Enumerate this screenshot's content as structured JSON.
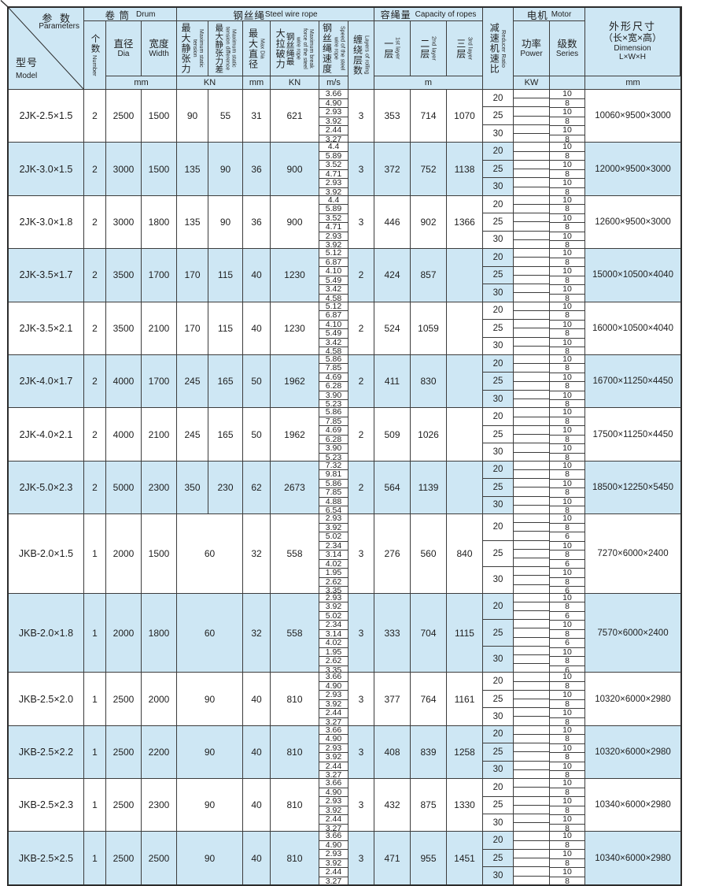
{
  "header": {
    "corner": {
      "params_zh": "参 数",
      "params_en": "Parameters",
      "model_zh": "型号",
      "model_en": "Model"
    },
    "groups": {
      "drum_zh": "卷 筒",
      "drum_en": "Drum",
      "rope_zh": "钢丝绳",
      "rope_en": "Steel wire rope",
      "capacity_zh": "容绳量",
      "capacity_en": "Capacity of ropes",
      "motor_zh": "电机",
      "motor_en": "Motor"
    },
    "cols": {
      "number_zh": "个数",
      "number_en": "Number",
      "dia_zh": "直径",
      "dia_en": "Dia",
      "width_zh": "宽度",
      "width_en": "Width",
      "tension_zh": "最大静张力",
      "tension_en": "Maximum static tension",
      "tension_diff_zh": "最大静张力差",
      "tension_diff_en": "Maximum static tension difference",
      "max_dia_zh": "最大直径",
      "max_dia_en": "Max Dia",
      "break_zh_a": "大拉破力",
      "break_zh_b": "钢丝绳最",
      "break_en": "Maximum break force of the steel wire rope",
      "speed_zh": "钢丝绳速度",
      "speed_en": "Speed of the steel wire rope",
      "layers_zh": "缠绕层数",
      "layers_en": "Layers of rolling",
      "layer1_zh": "一层",
      "layer1_en": "1st layer",
      "layer2_zh": "二层",
      "layer2_en": "2nd layer",
      "layer3_zh": "三层",
      "layer3_en": "3rd layer",
      "ratio_zh": "减速机速比",
      "ratio_en": "Reducer Ratio",
      "power_zh": "功率",
      "power_en": "Power",
      "series_zh": "级数",
      "series_en": "Series",
      "dim_zh": "外形尺寸",
      "dim_zh2": "（长×宽×高）",
      "dim_en": "Dimension",
      "dim_en2": "L×W×H"
    },
    "units": {
      "drum": "mm",
      "tension": "KN",
      "max_dia": "mm",
      "break": "KN",
      "speed": "m/s",
      "capacity": "m",
      "power": "KW",
      "dim": "mm"
    }
  },
  "rows": [
    {
      "model": "2JK-2.5×1.5",
      "number": "2",
      "dia": "2500",
      "width": "1500",
      "tension": "90",
      "tension_diff": "55",
      "max_dia": "31",
      "break_force": "621",
      "speeds": [
        "3.66",
        "4.90",
        "2.93",
        "3.92",
        "2.44",
        "3.27"
      ],
      "layers": "3",
      "cap1": "353",
      "cap2": "714",
      "cap3": "1070",
      "ratios": [
        "20",
        "25",
        "30"
      ],
      "series_pattern": [
        "10",
        "8"
      ],
      "dimension": "10060×9500×3000",
      "shaded": false
    },
    {
      "model": "2JK-3.0×1.5",
      "number": "2",
      "dia": "3000",
      "width": "1500",
      "tension": "135",
      "tension_diff": "90",
      "max_dia": "36",
      "break_force": "900",
      "speeds": [
        "4.4",
        "5.89",
        "3.52",
        "4.71",
        "2.93",
        "3.92"
      ],
      "layers": "3",
      "cap1": "372",
      "cap2": "752",
      "cap3": "1138",
      "ratios": [
        "20",
        "25",
        "30"
      ],
      "series_pattern": [
        "10",
        "8"
      ],
      "dimension": "12000×9500×3000",
      "shaded": true
    },
    {
      "model": "2JK-3.0×1.8",
      "number": "2",
      "dia": "3000",
      "width": "1800",
      "tension": "135",
      "tension_diff": "90",
      "max_dia": "36",
      "break_force": "900",
      "speeds": [
        "4.4",
        "5.89",
        "3.52",
        "4.71",
        "2.93",
        "3.92"
      ],
      "layers": "3",
      "cap1": "446",
      "cap2": "902",
      "cap3": "1366",
      "ratios": [
        "20",
        "25",
        "30"
      ],
      "series_pattern": [
        "10",
        "8"
      ],
      "dimension": "12600×9500×3000",
      "shaded": false
    },
    {
      "model": "2JK-3.5×1.7",
      "number": "2",
      "dia": "3500",
      "width": "1700",
      "tension": "170",
      "tension_diff": "115",
      "max_dia": "40",
      "break_force": "1230",
      "speeds": [
        "5.12",
        "6.87",
        "4.10",
        "5.49",
        "3.42",
        "4.58"
      ],
      "layers": "2",
      "cap1": "424",
      "cap2": "857",
      "cap3": "",
      "ratios": [
        "20",
        "25",
        "30"
      ],
      "series_pattern": [
        "10",
        "8"
      ],
      "dimension": "15000×10500×4040",
      "shaded": true
    },
    {
      "model": "2JK-3.5×2.1",
      "number": "2",
      "dia": "3500",
      "width": "2100",
      "tension": "170",
      "tension_diff": "115",
      "max_dia": "40",
      "break_force": "1230",
      "speeds": [
        "5.12",
        "6.87",
        "4.10",
        "5.49",
        "3.42",
        "4.58"
      ],
      "layers": "2",
      "cap1": "524",
      "cap2": "1059",
      "cap3": "",
      "ratios": [
        "20",
        "25",
        "30"
      ],
      "series_pattern": [
        "10",
        "8"
      ],
      "dimension": "16000×10500×4040",
      "shaded": false
    },
    {
      "model": "2JK-4.0×1.7",
      "number": "2",
      "dia": "4000",
      "width": "1700",
      "tension": "245",
      "tension_diff": "165",
      "max_dia": "50",
      "break_force": "1962",
      "speeds": [
        "5.86",
        "7.85",
        "4.69",
        "6.28",
        "3.90",
        "5.23"
      ],
      "layers": "2",
      "cap1": "411",
      "cap2": "830",
      "cap3": "",
      "ratios": [
        "20",
        "25",
        "30"
      ],
      "series_pattern": [
        "10",
        "8"
      ],
      "dimension": "16700×11250×4450",
      "shaded": true
    },
    {
      "model": "2JK-4.0×2.1",
      "number": "2",
      "dia": "4000",
      "width": "2100",
      "tension": "245",
      "tension_diff": "165",
      "max_dia": "50",
      "break_force": "1962",
      "speeds": [
        "5.86",
        "7.85",
        "4.69",
        "6.28",
        "3.90",
        "5.23"
      ],
      "layers": "2",
      "cap1": "509",
      "cap2": "1026",
      "cap3": "",
      "ratios": [
        "20",
        "25",
        "30"
      ],
      "series_pattern": [
        "10",
        "8"
      ],
      "dimension": "17500×11250×4450",
      "shaded": false
    },
    {
      "model": "2JK-5.0×2.3",
      "number": "2",
      "dia": "5000",
      "width": "2300",
      "tension": "350",
      "tension_diff": "230",
      "max_dia": "62",
      "break_force": "2673",
      "speeds": [
        "7.32",
        "9.81",
        "5.86",
        "7.85",
        "4.88",
        "6.54"
      ],
      "layers": "2",
      "cap1": "564",
      "cap2": "1139",
      "cap3": "",
      "ratios": [
        "20",
        "25",
        "30"
      ],
      "series_pattern": [
        "10",
        "8"
      ],
      "dimension": "18500×12250×5450",
      "shaded": true
    },
    {
      "model": "JKB-2.0×1.5",
      "number": "1",
      "dia": "2000",
      "width": "1500",
      "tension": "60",
      "tension_diff": null,
      "max_dia": "32",
      "break_force": "558",
      "speeds": [
        "2.93",
        "3.92",
        "5.02",
        "2.34",
        "3.14",
        "4.02",
        "1.95",
        "2.62",
        "3.35"
      ],
      "layers": "3",
      "cap1": "276",
      "cap2": "560",
      "cap3": "840",
      "ratios": [
        "20",
        "25",
        "30"
      ],
      "series_pattern": [
        "10",
        "8",
        "6"
      ],
      "dimension": "7270×6000×2400",
      "shaded": false
    },
    {
      "model": "JKB-2.0×1.8",
      "number": "1",
      "dia": "2000",
      "width": "1800",
      "tension": "60",
      "tension_diff": null,
      "max_dia": "32",
      "break_force": "558",
      "speeds": [
        "2.93",
        "3.92",
        "5.02",
        "2.34",
        "3.14",
        "4.02",
        "1.95",
        "2.62",
        "3.35"
      ],
      "layers": "3",
      "cap1": "333",
      "cap2": "704",
      "cap3": "1115",
      "ratios": [
        "20",
        "25",
        "30"
      ],
      "series_pattern": [
        "10",
        "8",
        "6"
      ],
      "dimension": "7570×6000×2400",
      "shaded": true
    },
    {
      "model": "JKB-2.5×2.0",
      "number": "1",
      "dia": "2500",
      "width": "2000",
      "tension": "90",
      "tension_diff": null,
      "max_dia": "40",
      "break_force": "810",
      "speeds": [
        "3.66",
        "4.90",
        "2.93",
        "3.92",
        "2.44",
        "3.27"
      ],
      "layers": "3",
      "cap1": "377",
      "cap2": "764",
      "cap3": "1161",
      "ratios": [
        "20",
        "25",
        "30"
      ],
      "series_pattern": [
        "10",
        "8"
      ],
      "dimension": "10320×6000×2980",
      "shaded": false
    },
    {
      "model": "JKB-2.5×2.2",
      "number": "1",
      "dia": "2500",
      "width": "2200",
      "tension": "90",
      "tension_diff": null,
      "max_dia": "40",
      "break_force": "810",
      "speeds": [
        "3.66",
        "4.90",
        "2.93",
        "3.92",
        "2.44",
        "3.27"
      ],
      "layers": "3",
      "cap1": "408",
      "cap2": "839",
      "cap3": "1258",
      "ratios": [
        "20",
        "25",
        "30"
      ],
      "series_pattern": [
        "10",
        "8"
      ],
      "dimension": "10320×6000×2980",
      "shaded": true
    },
    {
      "model": "JKB-2.5×2.3",
      "number": "1",
      "dia": "2500",
      "width": "2300",
      "tension": "90",
      "tension_diff": null,
      "max_dia": "40",
      "break_force": "810",
      "speeds": [
        "3.66",
        "4.90",
        "2.93",
        "3.92",
        "2.44",
        "3.27"
      ],
      "layers": "3",
      "cap1": "432",
      "cap2": "875",
      "cap3": "1330",
      "ratios": [
        "20",
        "25",
        "30"
      ],
      "series_pattern": [
        "10",
        "8"
      ],
      "dimension": "10340×6000×2980",
      "shaded": false
    },
    {
      "model": "JKB-2.5×2.5",
      "number": "1",
      "dia": "2500",
      "width": "2500",
      "tension": "90",
      "tension_diff": null,
      "max_dia": "40",
      "break_force": "810",
      "speeds": [
        "3.66",
        "4.90",
        "2.93",
        "3.92",
        "2.44",
        "3.27"
      ],
      "layers": "3",
      "cap1": "471",
      "cap2": "955",
      "cap3": "1451",
      "ratios": [
        "20",
        "25",
        "30"
      ],
      "series_pattern": [
        "10",
        "8"
      ],
      "dimension": "10340×6000×2980",
      "shaded": true
    }
  ],
  "colors": {
    "shade": "#cee7f4",
    "border": "#3c3c3c",
    "text": "#1e1e1e"
  }
}
